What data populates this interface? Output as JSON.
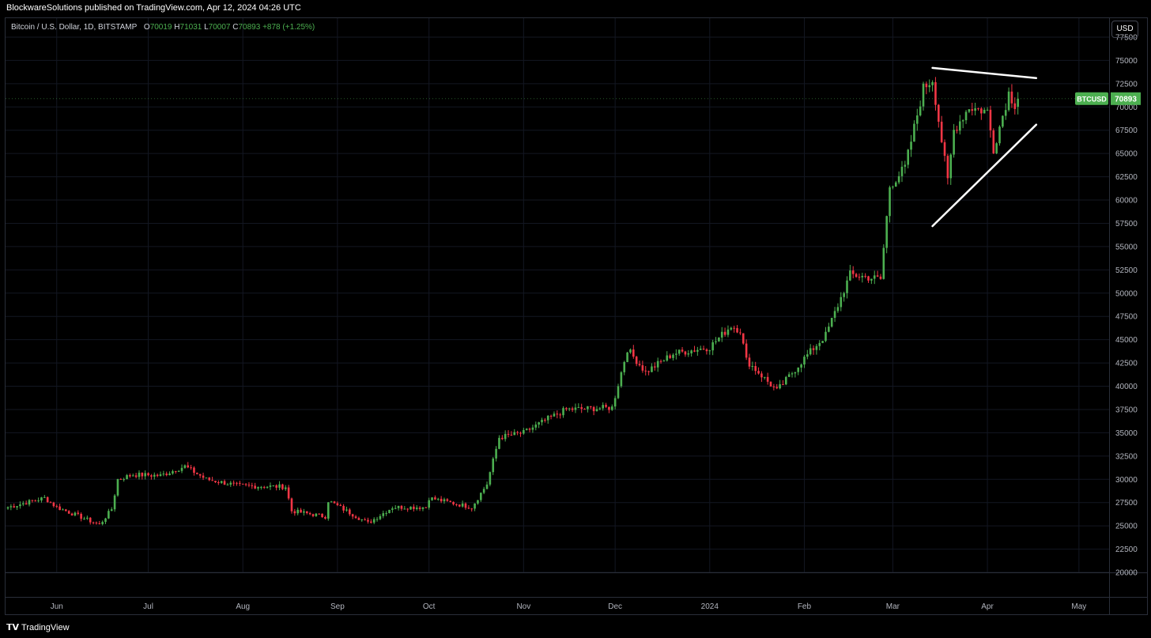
{
  "publisher_line": "BlockwareSolutions published on TradingView.com, Apr 12, 2024 04:26 UTC",
  "legend": {
    "symbol": "Bitcoin / U.S. Dollar, 1D, BITSTAMP",
    "o_label": "O",
    "o": "70019",
    "h_label": "H",
    "h": "71031",
    "l_label": "L",
    "l": "70007",
    "c_label": "C",
    "c": "70893",
    "change": "+878 (+1.25%)"
  },
  "currency_button": "USD",
  "price_tag": {
    "symbol": "BTCUSD",
    "value": "70893"
  },
  "brand": "TradingView",
  "colors": {
    "up": "#4caf50",
    "down": "#f23645",
    "grid": "#131722",
    "trendline": "#ffffff"
  },
  "chart_data": {
    "type": "candlestick",
    "title": "Bitcoin / U.S. Dollar, 1D, BITSTAMP",
    "ylim": [
      20000,
      77500
    ],
    "y_ticks": [
      "20000",
      "22500",
      "25000",
      "27500",
      "30000",
      "32500",
      "35000",
      "37500",
      "40000",
      "42500",
      "45000",
      "47500",
      "50000",
      "52500",
      "55000",
      "57500",
      "60000",
      "62500",
      "65000",
      "67500",
      "70000",
      "72500",
      "75000",
      "77500"
    ],
    "x_ticks": [
      "Jun",
      "Jul",
      "Aug",
      "Sep",
      "Oct",
      "Nov",
      "Dec",
      "2024",
      "Feb",
      "Mar",
      "Apr",
      "May"
    ],
    "start_date": "2023-05-16",
    "series": [
      {
        "name": "BTCUSD",
        "close_path": [
          {
            "date": "2023-05-16",
            "close": 27000
          },
          {
            "date": "2023-05-28",
            "close": 28000
          },
          {
            "date": "2023-06-01",
            "close": 27000
          },
          {
            "date": "2023-06-10",
            "close": 25800
          },
          {
            "date": "2023-06-15",
            "close": 25100
          },
          {
            "date": "2023-06-19",
            "close": 26800
          },
          {
            "date": "2023-06-21",
            "close": 30000
          },
          {
            "date": "2023-06-26",
            "close": 30500
          },
          {
            "date": "2023-07-05",
            "close": 30400
          },
          {
            "date": "2023-07-13",
            "close": 31400
          },
          {
            "date": "2023-07-20",
            "close": 30000
          },
          {
            "date": "2023-07-31",
            "close": 29300
          },
          {
            "date": "2023-08-15",
            "close": 29200
          },
          {
            "date": "2023-08-17",
            "close": 26600
          },
          {
            "date": "2023-08-28",
            "close": 26000
          },
          {
            "date": "2023-08-29",
            "close": 27700
          },
          {
            "date": "2023-09-11",
            "close": 25300
          },
          {
            "date": "2023-09-19",
            "close": 27000
          },
          {
            "date": "2023-09-30",
            "close": 27000
          },
          {
            "date": "2023-10-01",
            "close": 28000
          },
          {
            "date": "2023-10-15",
            "close": 27000
          },
          {
            "date": "2023-10-20",
            "close": 29500
          },
          {
            "date": "2023-10-24",
            "close": 34500
          },
          {
            "date": "2023-11-01",
            "close": 35000
          },
          {
            "date": "2023-11-09",
            "close": 36500
          },
          {
            "date": "2023-11-15",
            "close": 37500
          },
          {
            "date": "2023-11-30",
            "close": 37700
          },
          {
            "date": "2023-12-05",
            "close": 44000
          },
          {
            "date": "2023-12-11",
            "close": 41500
          },
          {
            "date": "2023-12-20",
            "close": 43500
          },
          {
            "date": "2024-01-01",
            "close": 44200
          },
          {
            "date": "2024-01-08",
            "close": 46500
          },
          {
            "date": "2024-01-11",
            "close": 46000
          },
          {
            "date": "2024-01-13",
            "close": 42800
          },
          {
            "date": "2024-01-23",
            "close": 39500
          },
          {
            "date": "2024-02-01",
            "close": 43000
          },
          {
            "date": "2024-02-08",
            "close": 45500
          },
          {
            "date": "2024-02-13",
            "close": 49500
          },
          {
            "date": "2024-02-16",
            "close": 52000
          },
          {
            "date": "2024-02-26",
            "close": 51500
          },
          {
            "date": "2024-02-29",
            "close": 61500
          },
          {
            "date": "2024-03-05",
            "close": 63500
          },
          {
            "date": "2024-03-11",
            "close": 72000
          },
          {
            "date": "2024-03-14",
            "close": 73000
          },
          {
            "date": "2024-03-19",
            "close": 62000
          },
          {
            "date": "2024-03-21",
            "close": 67500
          },
          {
            "date": "2024-03-26",
            "close": 70000
          },
          {
            "date": "2024-04-01",
            "close": 69500
          },
          {
            "date": "2024-04-03",
            "close": 65500
          },
          {
            "date": "2024-04-08",
            "close": 71500
          },
          {
            "date": "2024-04-10",
            "close": 70300
          },
          {
            "date": "2024-04-11",
            "close": 70893
          }
        ]
      }
    ],
    "annotations": [
      {
        "type": "trendline",
        "from": {
          "date": "2024-03-14",
          "price": 74200
        },
        "to": {
          "date": "2024-04-17",
          "price": 73100
        }
      },
      {
        "type": "trendline",
        "from": {
          "date": "2024-03-14",
          "price": 57200
        },
        "to": {
          "date": "2024-04-17",
          "price": 68100
        }
      }
    ]
  }
}
